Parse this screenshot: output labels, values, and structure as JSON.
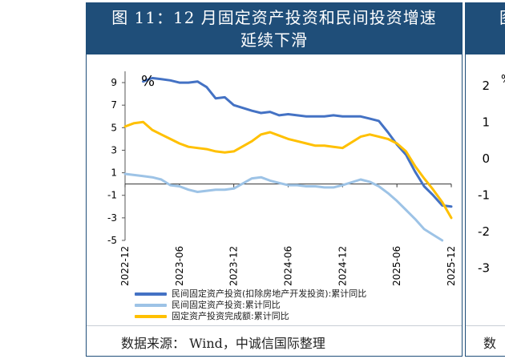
{
  "title_line1": "图 11：12 月固定资产投资和民间投资增速",
  "title_line2": "延续下滑",
  "source": "数据来源： Wind，中诚信国际整理",
  "right_panel": {
    "title_fragment": "图",
    "percent": "%",
    "yticks": [
      "2",
      "1",
      "0",
      "-1",
      "-2",
      "-3"
    ],
    "source_fragment": "数"
  },
  "chart_data": {
    "type": "line",
    "unit_label": "%",
    "ylim": [
      -5,
      10
    ],
    "yticks": [
      9,
      7,
      5,
      3,
      1,
      -1,
      -3,
      -5
    ],
    "x_ticks": [
      "2022-12",
      "2023-06",
      "2023-12",
      "2024-06",
      "2024-12",
      "2025-06",
      "2025-12"
    ],
    "x_period_months": [
      0,
      6,
      12,
      18,
      24,
      30,
      36
    ],
    "grid": false,
    "legend_position": "bottom",
    "series": [
      {
        "name": "民间固定资产投资(扣除房地产开发投资):累计同比",
        "color": "#4472c4",
        "months": [
          2,
          3,
          4,
          5,
          6,
          7,
          8,
          9,
          10,
          11,
          12,
          14,
          15,
          16,
          17,
          18,
          19,
          20,
          21,
          22,
          23,
          24,
          26,
          27,
          28,
          29,
          30,
          31,
          32,
          33,
          34,
          35,
          36
        ],
        "values": [
          9.1,
          9.4,
          9.3,
          9.2,
          9.0,
          9.0,
          9.1,
          8.6,
          7.6,
          7.7,
          7.0,
          6.5,
          6.3,
          6.4,
          6.1,
          6.2,
          6.1,
          6.0,
          6.0,
          6.0,
          6.1,
          6.0,
          6.0,
          5.8,
          5.6,
          4.6,
          3.5,
          2.6,
          1.1,
          -0.2,
          -1.0,
          -1.9,
          -2.0
        ]
      },
      {
        "name": "民间固定资产投资:累计同比",
        "color": "#9dc3e6",
        "months": [
          0,
          1,
          2,
          3,
          4,
          5,
          6,
          7,
          8,
          9,
          10,
          11,
          12,
          14,
          15,
          16,
          17,
          18,
          19,
          20,
          21,
          22,
          23,
          24,
          26,
          27,
          28,
          29,
          30,
          31,
          32,
          33,
          34,
          35
        ],
        "values": [
          0.9,
          0.8,
          0.7,
          0.6,
          0.4,
          -0.1,
          -0.2,
          -0.5,
          -0.7,
          -0.6,
          -0.5,
          -0.5,
          -0.4,
          0.5,
          0.6,
          0.3,
          0.1,
          -0.1,
          -0.1,
          -0.2,
          -0.2,
          -0.3,
          -0.3,
          -0.1,
          0.4,
          0.2,
          -0.2,
          -0.8,
          -1.5,
          -2.3,
          -3.1,
          -4.0,
          -4.5,
          -5.0
        ]
      },
      {
        "name": "固定资产投资完成额:累计同比",
        "color": "#ffc000",
        "months": [
          0,
          1,
          2,
          3,
          4,
          5,
          6,
          7,
          8,
          9,
          10,
          11,
          12,
          14,
          15,
          16,
          17,
          18,
          19,
          20,
          21,
          22,
          23,
          24,
          26,
          27,
          28,
          29,
          30,
          31,
          32,
          33,
          34,
          35,
          36
        ],
        "values": [
          5.1,
          5.4,
          5.5,
          4.8,
          4.4,
          4.0,
          3.6,
          3.3,
          3.2,
          3.1,
          2.9,
          2.8,
          2.9,
          3.8,
          4.4,
          4.6,
          4.3,
          4.0,
          3.8,
          3.6,
          3.4,
          3.4,
          3.3,
          3.2,
          4.2,
          4.4,
          4.2,
          4.0,
          3.6,
          2.9,
          1.6,
          0.5,
          -0.5,
          -1.6,
          -3.0
        ]
      }
    ]
  }
}
